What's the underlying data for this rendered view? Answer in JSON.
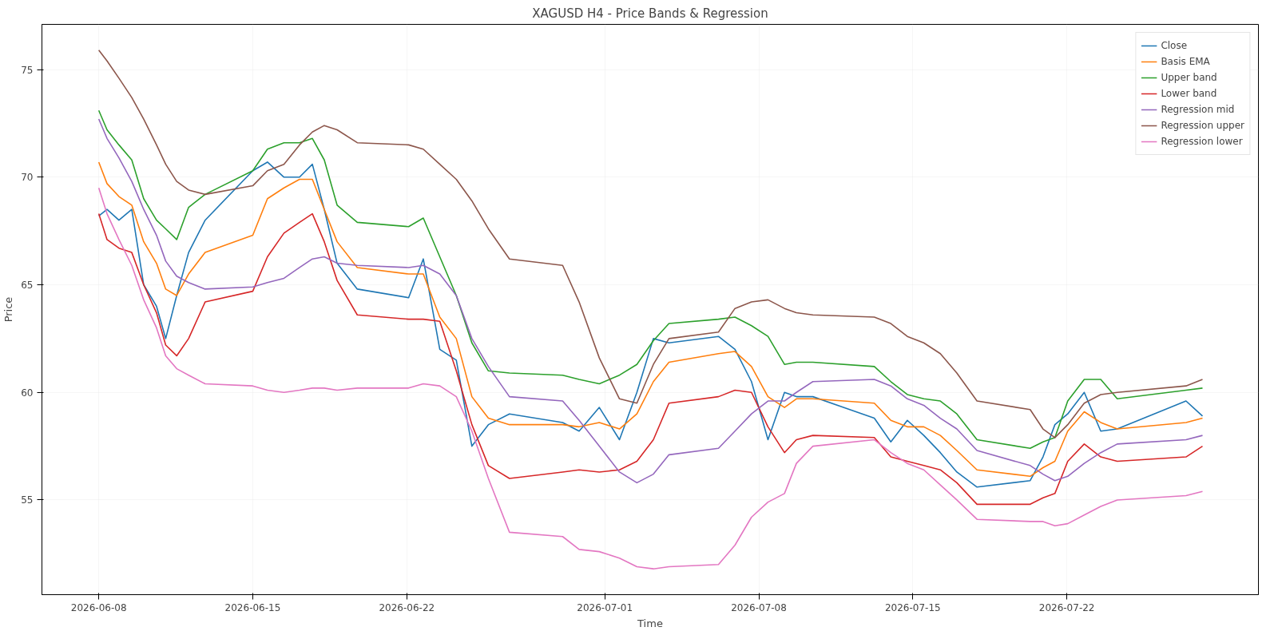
{
  "chart_data": {
    "type": "line",
    "title": "XAGUSD H4 - Price Bands & Regression",
    "xlabel": "Time",
    "ylabel": "Price",
    "x": [
      "2026-06-08T00:00",
      "2026-06-08T09:00",
      "2026-06-08T22:00",
      "2026-06-09T12:00",
      "2026-06-10T01:00",
      "2026-06-10T15:00",
      "2026-06-11T01:00",
      "2026-06-11T13:00",
      "2026-06-12T02:00",
      "2026-06-12T20:00",
      "2026-06-15T00:00",
      "2026-06-15T16:00",
      "2026-06-16T10:00",
      "2026-06-17T03:00",
      "2026-06-17T17:00",
      "2026-06-18T06:00",
      "2026-06-18T20:00",
      "2026-06-19T18:00",
      "2026-06-22T02:00",
      "2026-06-22T18:00",
      "2026-06-23T12:00",
      "2026-06-24T06:00",
      "2026-06-24T23:00",
      "2026-06-25T17:00",
      "2026-06-26T16:00",
      "2026-06-29T02:00",
      "2026-06-29T20:00",
      "2026-06-30T18:00",
      "2026-07-01T16:00",
      "2026-07-02T11:00",
      "2026-07-03T05:00",
      "2026-07-03T22:00",
      "2026-07-06T04:00",
      "2026-07-06T22:00",
      "2026-07-07T16:00",
      "2026-07-08T10:00",
      "2026-07-09T04:00",
      "2026-07-09T17:00",
      "2026-07-10T11:00",
      "2026-07-13T06:00",
      "2026-07-14T00:00",
      "2026-07-14T18:00",
      "2026-07-15T12:00",
      "2026-07-16T06:00",
      "2026-07-17T00:00",
      "2026-07-17T22:00",
      "2026-07-20T08:00",
      "2026-07-20T22:00",
      "2026-07-21T11:00",
      "2026-07-22T01:00",
      "2026-07-22T19:00",
      "2026-07-23T13:00",
      "2026-07-24T07:00",
      "2026-07-27T10:00",
      "2026-07-28T04:00"
    ],
    "series": [
      {
        "name": "Close",
        "color": "#1f77b4",
        "values": [
          68.2,
          68.5,
          68.0,
          68.5,
          65.0,
          64.0,
          62.5,
          64.5,
          66.5,
          68.0,
          70.3,
          70.7,
          70.0,
          70.0,
          70.6,
          68.5,
          66.0,
          64.8,
          64.4,
          66.2,
          62.0,
          61.5,
          57.5,
          58.5,
          59.0,
          58.6,
          58.2,
          59.3,
          57.8,
          60.0,
          62.5,
          62.3,
          62.6,
          62.0,
          60.5,
          57.8,
          60.0,
          59.8,
          59.8,
          58.8,
          57.7,
          58.7,
          58.0,
          57.2,
          56.3,
          55.6,
          55.9,
          57.0,
          58.5,
          59.0,
          60.0,
          58.2,
          58.3,
          59.6,
          58.9
        ]
      },
      {
        "name": "Basis EMA",
        "color": "#ff7f0e",
        "values": [
          70.7,
          69.7,
          69.1,
          68.7,
          67.0,
          66.0,
          64.8,
          64.5,
          65.5,
          66.5,
          67.3,
          69.0,
          69.5,
          69.9,
          69.9,
          68.5,
          67.0,
          65.8,
          65.5,
          65.5,
          63.5,
          62.5,
          59.8,
          58.8,
          58.5,
          58.5,
          58.4,
          58.6,
          58.3,
          59.0,
          60.5,
          61.4,
          61.8,
          61.9,
          61.2,
          59.8,
          59.3,
          59.7,
          59.7,
          59.5,
          58.7,
          58.4,
          58.4,
          58.0,
          57.3,
          56.4,
          56.1,
          56.5,
          56.8,
          58.2,
          59.1,
          58.6,
          58.3,
          58.6,
          58.8
        ]
      },
      {
        "name": "Upper band",
        "color": "#2ca02c",
        "values": [
          73.1,
          72.2,
          71.5,
          70.8,
          69.0,
          68.0,
          67.6,
          67.1,
          68.6,
          69.2,
          70.3,
          71.3,
          71.6,
          71.6,
          71.8,
          70.8,
          68.7,
          67.9,
          67.7,
          68.1,
          66.3,
          64.5,
          62.3,
          61.0,
          60.9,
          60.8,
          60.6,
          60.4,
          60.8,
          61.3,
          62.4,
          63.2,
          63.4,
          63.5,
          63.1,
          62.6,
          61.3,
          61.4,
          61.4,
          61.2,
          60.5,
          59.9,
          59.7,
          59.6,
          59.0,
          57.8,
          57.4,
          57.7,
          57.9,
          59.6,
          60.6,
          60.6,
          59.7,
          60.1,
          60.2
        ]
      },
      {
        "name": "Lower band",
        "color": "#d62728",
        "values": [
          68.3,
          67.1,
          66.7,
          66.5,
          65.0,
          63.7,
          62.2,
          61.7,
          62.5,
          64.2,
          64.7,
          66.3,
          67.4,
          67.9,
          68.3,
          67.0,
          65.2,
          63.6,
          63.4,
          63.4,
          63.3,
          61.0,
          58.5,
          56.6,
          56.0,
          56.3,
          56.4,
          56.3,
          56.4,
          56.8,
          57.8,
          59.5,
          59.8,
          60.1,
          60.0,
          58.4,
          57.2,
          57.8,
          58.0,
          57.9,
          57.0,
          56.8,
          56.6,
          56.4,
          55.8,
          54.8,
          54.8,
          55.1,
          55.3,
          56.8,
          57.6,
          57.0,
          56.8,
          57.0,
          57.5
        ]
      },
      {
        "name": "Regression mid",
        "color": "#9467bd",
        "values": [
          72.7,
          71.8,
          70.9,
          69.8,
          68.5,
          67.3,
          66.1,
          65.4,
          65.1,
          64.8,
          64.9,
          65.1,
          65.3,
          65.8,
          66.2,
          66.3,
          66.0,
          65.9,
          65.8,
          65.9,
          65.5,
          64.5,
          62.5,
          61.2,
          59.8,
          59.6,
          58.7,
          57.5,
          56.3,
          55.8,
          56.2,
          57.1,
          57.4,
          58.2,
          59.0,
          59.6,
          59.6,
          60.0,
          60.5,
          60.6,
          60.3,
          59.7,
          59.4,
          58.8,
          58.3,
          57.3,
          56.6,
          56.2,
          55.9,
          56.1,
          56.7,
          57.2,
          57.6,
          57.8,
          58.0
        ]
      },
      {
        "name": "Regression upper",
        "color": "#8c564b",
        "values": [
          75.9,
          75.4,
          74.6,
          73.7,
          72.7,
          71.5,
          70.6,
          69.8,
          69.4,
          69.2,
          69.6,
          70.3,
          70.6,
          71.5,
          72.1,
          72.4,
          72.2,
          71.6,
          71.5,
          71.3,
          70.6,
          69.9,
          68.9,
          67.6,
          66.2,
          65.9,
          64.2,
          61.6,
          59.7,
          59.5,
          61.3,
          62.5,
          62.8,
          63.9,
          64.2,
          64.3,
          63.9,
          63.7,
          63.6,
          63.5,
          63.2,
          62.6,
          62.3,
          61.8,
          60.9,
          59.6,
          59.2,
          58.3,
          57.9,
          58.5,
          59.5,
          59.9,
          60.0,
          60.3,
          60.6
        ]
      },
      {
        "name": "Regression lower",
        "color": "#e377c2",
        "values": [
          69.5,
          68.3,
          67.1,
          65.9,
          64.3,
          63.0,
          61.7,
          61.1,
          60.8,
          60.4,
          60.3,
          60.1,
          60.0,
          60.1,
          60.2,
          60.2,
          60.1,
          60.2,
          60.2,
          60.4,
          60.3,
          59.8,
          58.2,
          56.0,
          53.5,
          53.3,
          52.7,
          52.6,
          52.3,
          51.9,
          51.8,
          51.9,
          52.0,
          52.9,
          54.2,
          54.9,
          55.3,
          56.7,
          57.5,
          57.8,
          57.2,
          56.7,
          56.4,
          55.7,
          55.0,
          54.1,
          54.0,
          54.0,
          53.8,
          53.9,
          54.3,
          54.7,
          55.0,
          55.2,
          55.4
        ]
      }
    ],
    "xlim": [
      "2026-06-05T10:00",
      "2026-07-30T17:00"
    ],
    "xticks": [
      "2026-06-08",
      "2026-06-15",
      "2026-06-22",
      "2026-07-01",
      "2026-07-08",
      "2026-07-15",
      "2026-07-22"
    ],
    "ylim": [
      50.6,
      77.1
    ],
    "yticks": [
      55,
      60,
      65,
      70,
      75
    ],
    "grid": true,
    "legend": "top right",
    "marker": "none",
    "line_style": "solid"
  }
}
